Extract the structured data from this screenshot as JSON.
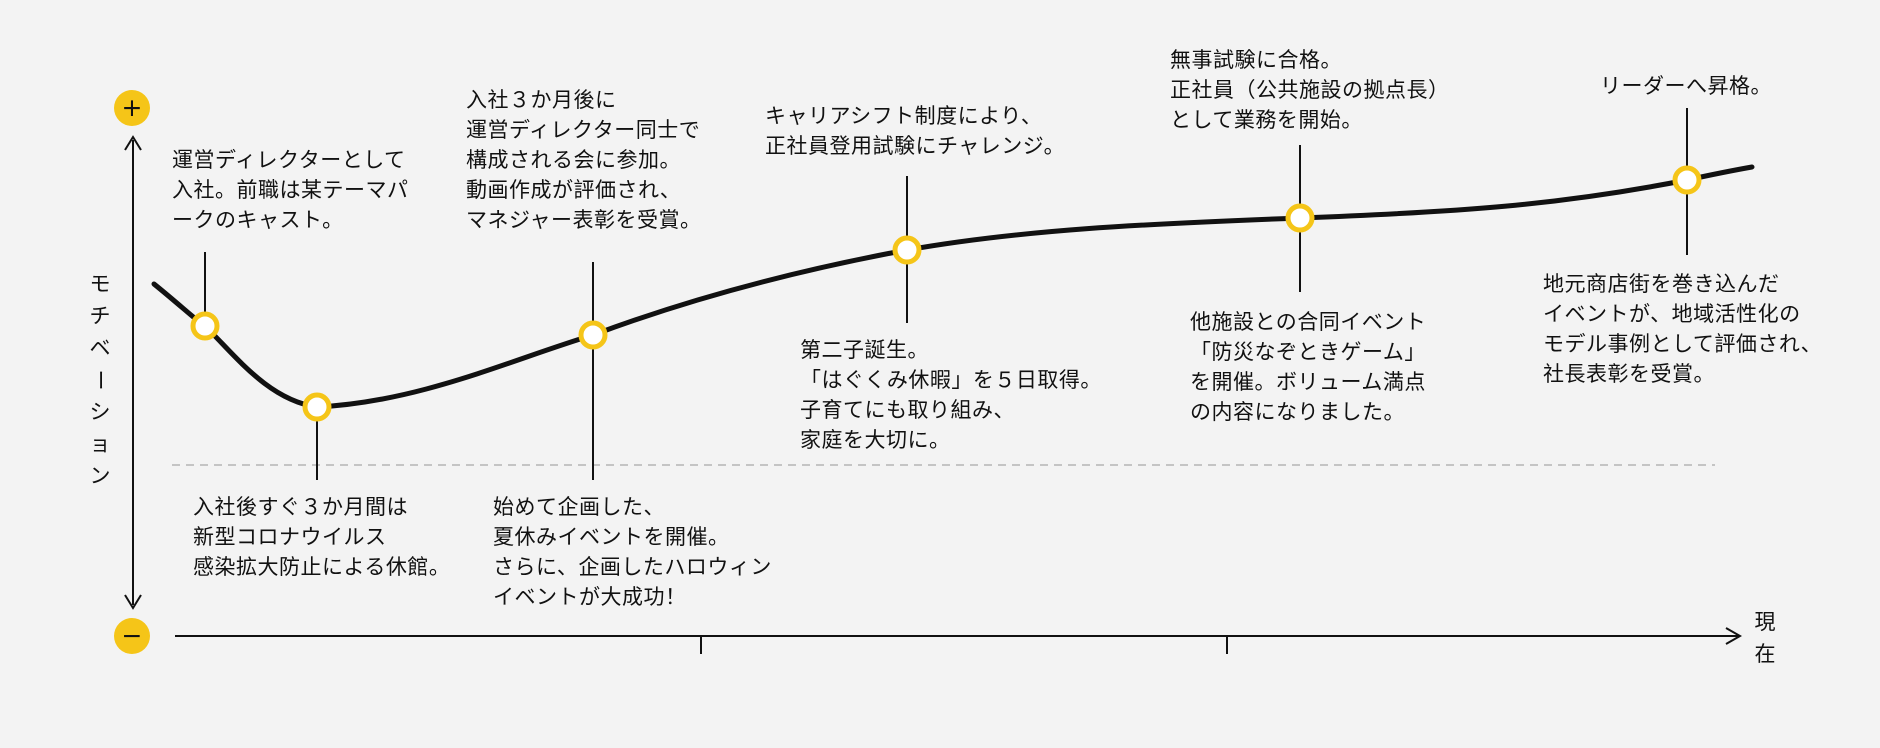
{
  "axis": {
    "y_label": "モチベーション",
    "x_end_label": "現在",
    "plus_symbol": "+",
    "minus_symbol": "−"
  },
  "colors": {
    "background": "#f3f3f3",
    "line": "#111111",
    "marker": "#f5c518",
    "marker_fill": "#ffffff",
    "baseline": "#b5b5b5"
  },
  "chart_data": {
    "type": "line",
    "x_label": "現在",
    "y_label": "モチベーション",
    "events": [
      {
        "label": [
          "運営ディレクターとして",
          "入社。前職は某テーマパ",
          "ークのキャスト。"
        ]
      },
      {
        "label": [
          "入社後すぐ３か月間は",
          "新型コロナウイルス",
          "感染拡大防止による休館。"
        ]
      },
      {
        "label": [
          "入社３か月後に",
          "運営ディレクター同士で",
          "構成される会に参加。",
          "動画作成が評価され、",
          "マネジャー表彰を受賞。"
        ],
        "label_below": [
          "始めて企画した、",
          "夏休みイベントを開催。",
          "さらに、企画したハロウィン",
          "イベントが大成功！"
        ]
      },
      {
        "label": [
          "キャリアシフト制度により、",
          "正社員登用試験にチャレンジ。"
        ],
        "label_below": [
          "第二子誕生。",
          "「はぐくみ休暇」を５日取得。",
          "子育てにも取り組み、",
          "家庭を大切に。"
        ]
      },
      {
        "label": [
          "無事試験に合格。",
          "正社員（公共施設の拠点長）",
          "として業務を開始。"
        ],
        "label_below": [
          "他施設との合同イベント",
          "「防災なぞときゲーム」",
          "を開催。ボリューム満点",
          "の内容になりました。"
        ]
      },
      {
        "label": [
          "リーダーへ昇格。"
        ],
        "label_below": [
          "地元商店街を巻き込んだ",
          "イベントが、地域活性化の",
          "モデル事例として評価され、",
          "社長表彰を受賞。"
        ]
      }
    ]
  }
}
